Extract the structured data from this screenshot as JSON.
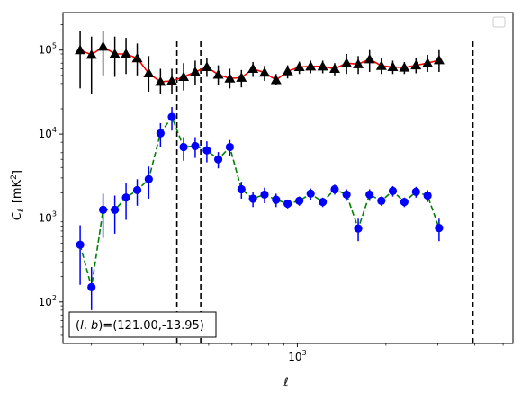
{
  "chart_data": {
    "type": "line",
    "x_scale": "log",
    "y_scale": "log",
    "xlim": [
      160,
      5400
    ],
    "ylim": [
      32,
      280000
    ],
    "xlabel_base": "ℓ",
    "ylabel_base": "C",
    "ylabel_sub": "ℓ",
    "ylabel_unit_prefix": "[mK",
    "ylabel_unit_exp": "2",
    "ylabel_unit_suffix": "]",
    "x_major_ticks": [
      {
        "value": 1000,
        "base": "10",
        "exp": "3"
      }
    ],
    "y_major_ticks": [
      {
        "value": 100,
        "base": "10",
        "exp": "2"
      },
      {
        "value": 1000,
        "base": "10",
        "exp": "3"
      },
      {
        "value": 10000,
        "base": "10",
        "exp": "4"
      },
      {
        "value": 100000,
        "base": "10",
        "exp": "5"
      }
    ],
    "vlines": [
      390,
      470,
      3950
    ],
    "annotation": "(l, b)=(121.00,-13.95)",
    "annotation_parts": {
      "open": "(",
      "l": "l",
      "comma": ", ",
      "b": "b",
      "rest": ")=(121.00,-13.95)"
    },
    "legend": "empty box, top-right",
    "series": [
      {
        "color": "#ff0000",
        "marker": "triangle",
        "marker_color": "#000000",
        "linestyle": "solid",
        "x": [
          183,
          200,
          219,
          240,
          262,
          286,
          313,
          343,
          375,
          411,
          450,
          493,
          539,
          590,
          646,
          707,
          774,
          847,
          927,
          1016,
          1110,
          1220,
          1340,
          1470,
          1610,
          1760,
          1930,
          2110,
          2310,
          2530,
          2770,
          3030
        ],
        "y": [
          100000,
          88000,
          110000,
          90000,
          90000,
          80000,
          53000,
          42000,
          43000,
          48000,
          55000,
          63000,
          51000,
          46000,
          47000,
          60000,
          54000,
          44000,
          56000,
          63000,
          64000,
          64000,
          60000,
          70000,
          68000,
          78000,
          65000,
          63000,
          62000,
          66000,
          70000,
          76000
        ],
        "y_low": [
          35000,
          30000,
          50000,
          48000,
          52000,
          50000,
          32000,
          30000,
          30000,
          33000,
          38000,
          48000,
          38000,
          35000,
          36000,
          48000,
          43000,
          38000,
          46000,
          52000,
          53000,
          53000,
          50000,
          52000,
          52000,
          55000,
          52000,
          52000,
          52000,
          53000,
          55000,
          55000
        ],
        "y_high": [
          170000,
          145000,
          170000,
          145000,
          140000,
          120000,
          85000,
          60000,
          60000,
          70000,
          75000,
          80000,
          66000,
          60000,
          58000,
          72000,
          65000,
          52000,
          66000,
          73000,
          75000,
          75000,
          70000,
          90000,
          85000,
          100000,
          80000,
          75000,
          72000,
          80000,
          88000,
          100000
        ]
      },
      {
        "color": "#008000",
        "marker": "circle",
        "marker_color": "#0000ff",
        "linestyle": "dashed",
        "x": [
          183,
          200,
          219,
          240,
          262,
          286,
          313,
          343,
          375,
          411,
          450,
          493,
          539,
          590,
          646,
          707,
          774,
          847,
          927,
          1016,
          1110,
          1220,
          1340,
          1470,
          1610,
          1760,
          1930,
          2110,
          2310,
          2530,
          2770,
          3030
        ],
        "y": [
          480,
          150,
          1250,
          1250,
          1750,
          2150,
          2900,
          10200,
          16000,
          7000,
          7200,
          6400,
          5000,
          7000,
          2200,
          1700,
          1900,
          1650,
          1480,
          1600,
          1950,
          1550,
          2200,
          1900,
          750,
          1900,
          1600,
          2100,
          1550,
          2050,
          1850,
          760
        ],
        "y_low": [
          160,
          80,
          580,
          650,
          950,
          1400,
          1700,
          7000,
          11000,
          4800,
          5200,
          4600,
          3900,
          5500,
          1700,
          1350,
          1500,
          1350,
          1300,
          1400,
          1650,
          1350,
          1900,
          1600,
          530,
          1600,
          1400,
          1800,
          1350,
          1750,
          1550,
          530
        ],
        "y_high": [
          820,
          260,
          1950,
          1850,
          2600,
          2900,
          4100,
          13500,
          21000,
          9200,
          9200,
          8200,
          6100,
          8500,
          2700,
          2050,
          2300,
          1950,
          1660,
          1800,
          2250,
          1750,
          2500,
          2200,
          980,
          2200,
          1800,
          2400,
          1750,
          2350,
          2150,
          980
        ]
      }
    ]
  }
}
